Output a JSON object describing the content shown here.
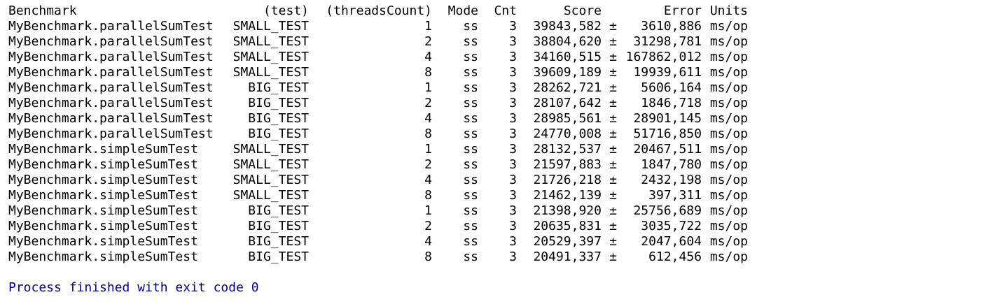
{
  "table": {
    "headers": {
      "benchmark": "Benchmark",
      "test": "(test)",
      "threads": "(threadsCount)",
      "mode": "Mode",
      "cnt": "Cnt",
      "score": "Score",
      "error": "Error",
      "units": "Units"
    },
    "rows": [
      {
        "benchmark": "MyBenchmark.parallelSumTest",
        "test": "SMALL_TEST",
        "threads": "1",
        "mode": "ss",
        "cnt": "3",
        "score": "39843,582",
        "pm": "±",
        "error": "3610,886",
        "units": "ms/op"
      },
      {
        "benchmark": "MyBenchmark.parallelSumTest",
        "test": "SMALL_TEST",
        "threads": "2",
        "mode": "ss",
        "cnt": "3",
        "score": "38804,620",
        "pm": "±",
        "error": "31298,781",
        "units": "ms/op"
      },
      {
        "benchmark": "MyBenchmark.parallelSumTest",
        "test": "SMALL_TEST",
        "threads": "4",
        "mode": "ss",
        "cnt": "3",
        "score": "34160,515",
        "pm": "±",
        "error": "167862,012",
        "units": "ms/op"
      },
      {
        "benchmark": "MyBenchmark.parallelSumTest",
        "test": "SMALL_TEST",
        "threads": "8",
        "mode": "ss",
        "cnt": "3",
        "score": "39609,189",
        "pm": "±",
        "error": "19939,611",
        "units": "ms/op"
      },
      {
        "benchmark": "MyBenchmark.parallelSumTest",
        "test": "BIG_TEST",
        "threads": "1",
        "mode": "ss",
        "cnt": "3",
        "score": "28262,721",
        "pm": "±",
        "error": "5606,164",
        "units": "ms/op"
      },
      {
        "benchmark": "MyBenchmark.parallelSumTest",
        "test": "BIG_TEST",
        "threads": "2",
        "mode": "ss",
        "cnt": "3",
        "score": "28107,642",
        "pm": "±",
        "error": "1846,718",
        "units": "ms/op"
      },
      {
        "benchmark": "MyBenchmark.parallelSumTest",
        "test": "BIG_TEST",
        "threads": "4",
        "mode": "ss",
        "cnt": "3",
        "score": "28985,561",
        "pm": "±",
        "error": "28901,145",
        "units": "ms/op"
      },
      {
        "benchmark": "MyBenchmark.parallelSumTest",
        "test": "BIG_TEST",
        "threads": "8",
        "mode": "ss",
        "cnt": "3",
        "score": "24770,008",
        "pm": "±",
        "error": "51716,850",
        "units": "ms/op"
      },
      {
        "benchmark": "MyBenchmark.simpleSumTest",
        "test": "SMALL_TEST",
        "threads": "1",
        "mode": "ss",
        "cnt": "3",
        "score": "28132,537",
        "pm": "±",
        "error": "20467,511",
        "units": "ms/op"
      },
      {
        "benchmark": "MyBenchmark.simpleSumTest",
        "test": "SMALL_TEST",
        "threads": "2",
        "mode": "ss",
        "cnt": "3",
        "score": "21597,883",
        "pm": "±",
        "error": "1847,780",
        "units": "ms/op"
      },
      {
        "benchmark": "MyBenchmark.simpleSumTest",
        "test": "SMALL_TEST",
        "threads": "4",
        "mode": "ss",
        "cnt": "3",
        "score": "21726,218",
        "pm": "±",
        "error": "2432,198",
        "units": "ms/op"
      },
      {
        "benchmark": "MyBenchmark.simpleSumTest",
        "test": "SMALL_TEST",
        "threads": "8",
        "mode": "ss",
        "cnt": "3",
        "score": "21462,139",
        "pm": "±",
        "error": "397,311",
        "units": "ms/op"
      },
      {
        "benchmark": "MyBenchmark.simpleSumTest",
        "test": "BIG_TEST",
        "threads": "1",
        "mode": "ss",
        "cnt": "3",
        "score": "21398,920",
        "pm": "±",
        "error": "25756,689",
        "units": "ms/op"
      },
      {
        "benchmark": "MyBenchmark.simpleSumTest",
        "test": "BIG_TEST",
        "threads": "2",
        "mode": "ss",
        "cnt": "3",
        "score": "20635,831",
        "pm": "±",
        "error": "3035,722",
        "units": "ms/op"
      },
      {
        "benchmark": "MyBenchmark.simpleSumTest",
        "test": "BIG_TEST",
        "threads": "4",
        "mode": "ss",
        "cnt": "3",
        "score": "20529,397",
        "pm": "±",
        "error": "2047,604",
        "units": "ms/op"
      },
      {
        "benchmark": "MyBenchmark.simpleSumTest",
        "test": "BIG_TEST",
        "threads": "8",
        "mode": "ss",
        "cnt": "3",
        "score": "20491,337",
        "pm": "±",
        "error": "612,456",
        "units": "ms/op"
      }
    ]
  },
  "exit_message": "Process finished with exit code 0",
  "colors": {
    "text": "#000000",
    "exit_message": "#000080",
    "background": "#ffffff"
  }
}
